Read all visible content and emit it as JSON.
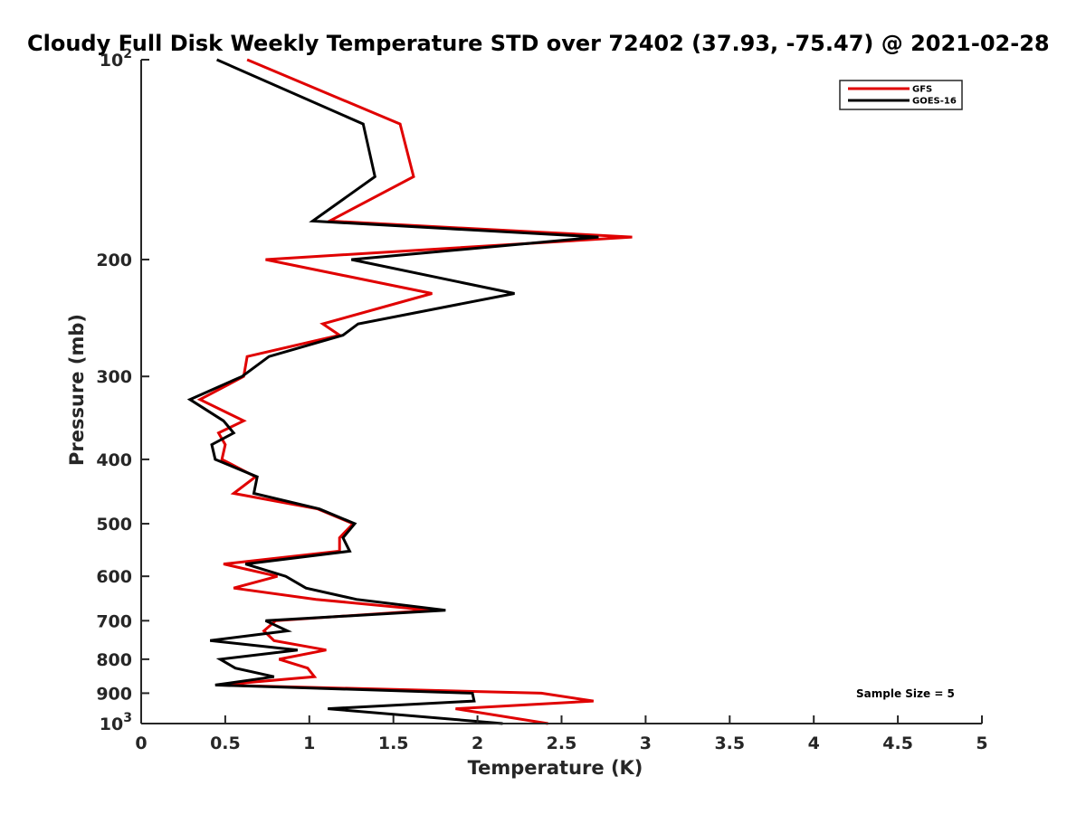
{
  "chart_data": {
    "type": "line",
    "title": "Cloudy Full Disk Weekly Temperature STD over 72402 (37.93, -75.47) @ 2021-02-28",
    "xlabel": "Temperature (K)",
    "ylabel": "Pressure (mb)",
    "xlim": [
      0,
      5
    ],
    "ylim": [
      100,
      1000
    ],
    "yscale": "log",
    "yreversed": true,
    "x_ticks": [
      "0",
      "0.5",
      "1",
      "1.5",
      "2",
      "2.5",
      "3",
      "3.5",
      "4",
      "4.5",
      "5"
    ],
    "x_tick_values": [
      0,
      0.5,
      1,
      1.5,
      2,
      2.5,
      3,
      3.5,
      4,
      4.5,
      5
    ],
    "y_ticks": [
      {
        "value": 100,
        "base": "10",
        "exp": "2"
      },
      {
        "value": 200,
        "label": "200"
      },
      {
        "value": 300,
        "label": "300"
      },
      {
        "value": 400,
        "label": "400"
      },
      {
        "value": 500,
        "label": "500"
      },
      {
        "value": 600,
        "label": "600"
      },
      {
        "value": 700,
        "label": "700"
      },
      {
        "value": 800,
        "label": "800"
      },
      {
        "value": 900,
        "label": "900"
      },
      {
        "value": 1000,
        "base": "10",
        "exp": "3"
      }
    ],
    "grid": false,
    "legend_position": "top-right",
    "annotation": "Sample Size = 5",
    "series": [
      {
        "name": "GFS",
        "color": "#e00000",
        "points": [
          [
            0.63,
            100
          ],
          [
            1.54,
            125
          ],
          [
            1.62,
            150
          ],
          [
            1.12,
            175
          ],
          [
            2.92,
            185
          ],
          [
            0.74,
            200
          ],
          [
            1.73,
            225
          ],
          [
            1.08,
            250
          ],
          [
            1.18,
            260
          ],
          [
            0.63,
            280
          ],
          [
            0.61,
            300
          ],
          [
            0.35,
            325
          ],
          [
            0.61,
            350
          ],
          [
            0.46,
            365
          ],
          [
            0.5,
            380
          ],
          [
            0.48,
            400
          ],
          [
            0.68,
            425
          ],
          [
            0.55,
            450
          ],
          [
            1.05,
            475
          ],
          [
            1.26,
            500
          ],
          [
            1.18,
            525
          ],
          [
            1.18,
            550
          ],
          [
            0.49,
            575
          ],
          [
            0.81,
            600
          ],
          [
            0.55,
            625
          ],
          [
            1.04,
            650
          ],
          [
            1.72,
            675
          ],
          [
            0.8,
            700
          ],
          [
            0.73,
            725
          ],
          [
            0.79,
            750
          ],
          [
            1.1,
            775
          ],
          [
            0.82,
            800
          ],
          [
            0.99,
            825
          ],
          [
            1.03,
            850
          ],
          [
            0.46,
            875
          ],
          [
            2.38,
            900
          ],
          [
            2.69,
            925
          ],
          [
            1.87,
            950
          ],
          [
            2.42,
            1000
          ]
        ]
      },
      {
        "name": "GOES-16",
        "color": "#000000",
        "points": [
          [
            0.45,
            100
          ],
          [
            1.32,
            125
          ],
          [
            1.39,
            150
          ],
          [
            1.02,
            175
          ],
          [
            2.72,
            185
          ],
          [
            1.25,
            200
          ],
          [
            2.22,
            225
          ],
          [
            1.29,
            250
          ],
          [
            1.2,
            260
          ],
          [
            0.76,
            280
          ],
          [
            0.6,
            300
          ],
          [
            0.29,
            325
          ],
          [
            0.49,
            350
          ],
          [
            0.55,
            365
          ],
          [
            0.42,
            380
          ],
          [
            0.44,
            400
          ],
          [
            0.69,
            425
          ],
          [
            0.67,
            450
          ],
          [
            1.06,
            475
          ],
          [
            1.27,
            500
          ],
          [
            1.2,
            525
          ],
          [
            1.24,
            550
          ],
          [
            0.62,
            575
          ],
          [
            0.86,
            600
          ],
          [
            0.98,
            625
          ],
          [
            1.28,
            650
          ],
          [
            1.81,
            675
          ],
          [
            0.74,
            700
          ],
          [
            0.87,
            725
          ],
          [
            0.41,
            750
          ],
          [
            0.93,
            775
          ],
          [
            0.47,
            800
          ],
          [
            0.56,
            825
          ],
          [
            0.79,
            850
          ],
          [
            0.44,
            875
          ],
          [
            1.97,
            900
          ],
          [
            1.98,
            925
          ],
          [
            1.11,
            950
          ],
          [
            2.15,
            1000
          ]
        ]
      }
    ]
  }
}
